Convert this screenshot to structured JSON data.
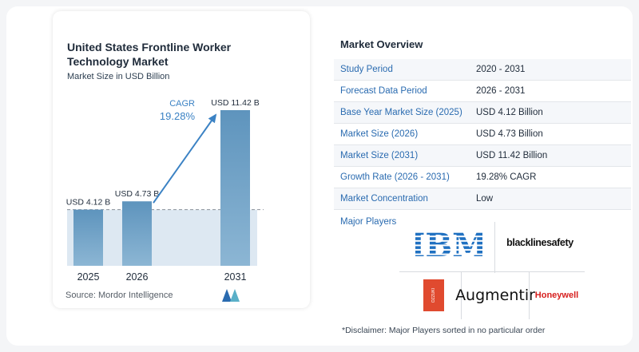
{
  "chart": {
    "title": "United States Frontline Worker Technology Market",
    "subtitle": "Market Size in USD Billion",
    "cagr_label": "CAGR",
    "cagr_value": "19.28%",
    "source": "Source:  Mordor Intelligence"
  },
  "chart_data": {
    "type": "bar",
    "title": "United States Frontline Worker Technology Market",
    "subtitle": "Market Size in USD Billion",
    "categories": [
      "2025",
      "2026",
      "2031"
    ],
    "values": [
      4.12,
      4.73,
      11.42
    ],
    "data_labels": [
      "USD 4.12 B",
      "USD 4.73 B",
      "USD 11.42 B"
    ],
    "ylim": [
      0,
      12
    ],
    "annotation": "CAGR 19.28%",
    "colors": {
      "bar_top": "#5e94bd",
      "bar_bottom": "#8cb6d4",
      "accent": "#3b82c4",
      "band": "#dde8f2"
    }
  },
  "overview": {
    "title": "Market Overview",
    "rows": [
      {
        "label": "Study Period",
        "value": "2020 - 2031"
      },
      {
        "label": "Forecast Data Period",
        "value": "2026 - 2031"
      },
      {
        "label": "Base Year Market Size (2025)",
        "value": "USD 4.12 Billion"
      },
      {
        "label": "Market Size (2026)",
        "value": "USD 4.73 Billion"
      },
      {
        "label": "Market Size (2031)",
        "value": "USD 11.42 Billion"
      },
      {
        "label": "Growth Rate (2026 - 2031)",
        "value": "19.28% CAGR"
      },
      {
        "label": "Market Concentration",
        "value": "Low"
      }
    ]
  },
  "players": {
    "label": "Major Players",
    "logos": {
      "ibm": "IBM",
      "blackline": "blacklinesafety",
      "augmentir": "Augmentir",
      "honeywell": "Honeywell",
      "ozzuki": "OZZUKI"
    },
    "disclaimer": "*Disclaimer: Major Players sorted in no particular order"
  }
}
